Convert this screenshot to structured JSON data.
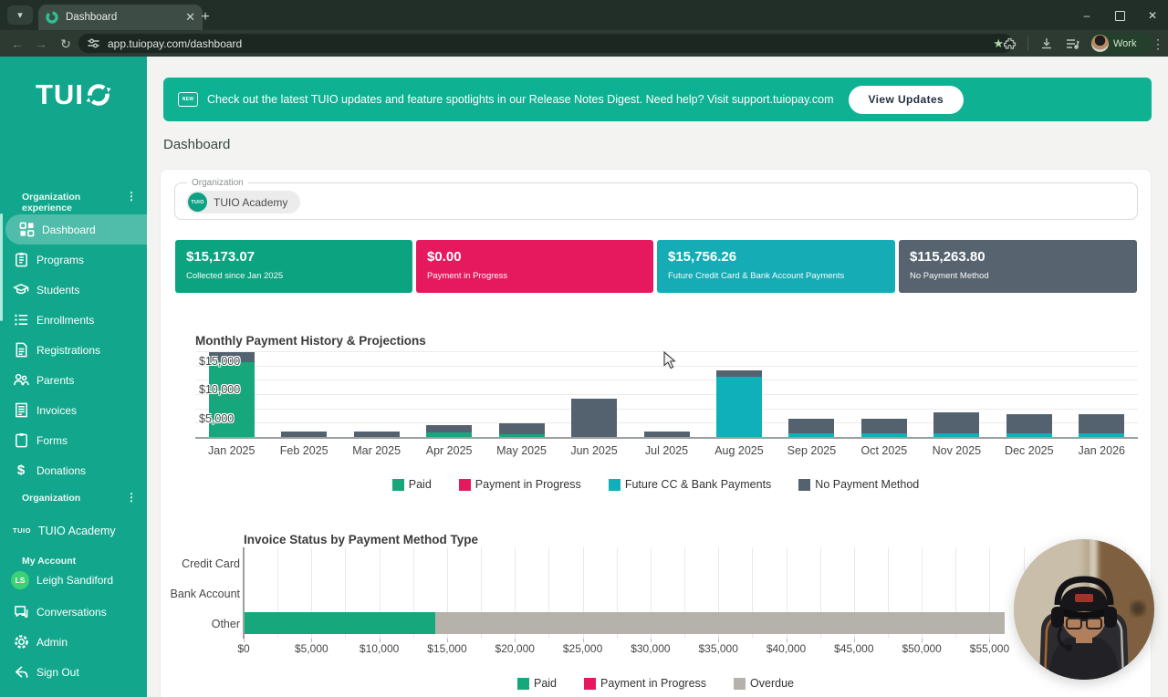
{
  "browser": {
    "tab_title": "Dashboard",
    "url": "app.tuiopay.com/dashboard",
    "profile_label": "Work"
  },
  "sidebar": {
    "logo_text": "TUI",
    "section_experience": "Organization experience",
    "nav": [
      {
        "label": "Dashboard",
        "icon": "dashboard-grid-icon"
      },
      {
        "label": "Programs",
        "icon": "clipboard-icon"
      },
      {
        "label": "Students",
        "icon": "graduation-cap-icon"
      },
      {
        "label": "Enrollments",
        "icon": "list-icon"
      },
      {
        "label": "Registrations",
        "icon": "document-icon"
      },
      {
        "label": "Parents",
        "icon": "people-icon"
      },
      {
        "label": "Invoices",
        "icon": "invoice-icon"
      },
      {
        "label": "Forms",
        "icon": "clipboard-icon"
      },
      {
        "label": "Donations",
        "icon": "dollar-icon"
      }
    ],
    "section_organization": "Organization",
    "org_logo_text": "TUIO",
    "org_name": "TUIO Academy",
    "section_account": "My Account",
    "user_initials": "LS",
    "user_name": "Leigh Sandiford",
    "conversations_label": "Conversations",
    "admin_label": "Admin",
    "signout_label": "Sign Out"
  },
  "banner": {
    "badge": "NEW",
    "message": "Check out the latest TUIO updates and feature spotlights in our Release Notes Digest. Need help? Visit support.tuiopay.com",
    "button_label": "View Updates"
  },
  "page_title": "Dashboard",
  "organization_field": {
    "label": "Organization",
    "logo_text": "TUIO",
    "value": "TUIO Academy"
  },
  "stat_cards": [
    {
      "amount": "$15,173.07",
      "label": "Collected since Jan 2025",
      "color": "#0BA380"
    },
    {
      "amount": "$0.00",
      "label": "Payment in Progress",
      "color": "#E6195E"
    },
    {
      "amount": "$15,756.26",
      "label": "Future Credit Card & Bank Account Payments",
      "color": "#15ACB6"
    },
    {
      "amount": "$115,263.80",
      "label": "No Payment Method",
      "color": "#57646F"
    }
  ],
  "chart_data": [
    {
      "type": "bar",
      "stacked": true,
      "title": "Monthly Payment History & Projections",
      "categories": [
        "Jan 2025",
        "Feb 2025",
        "Mar 2025",
        "Apr 2025",
        "May 2025",
        "Jun 2025",
        "Jul 2025",
        "Aug 2025",
        "Sep 2025",
        "Oct 2025",
        "Nov 2025",
        "Dec 2025",
        "Jan 2026"
      ],
      "series": [
        {
          "name": "Paid",
          "color": "#17A77D",
          "values": [
            13200,
            0,
            0,
            900,
            600,
            0,
            0,
            0,
            0,
            0,
            0,
            0,
            0
          ]
        },
        {
          "name": "Payment in Progress",
          "color": "#E6195E",
          "values": [
            0,
            0,
            0,
            0,
            0,
            0,
            0,
            0,
            0,
            0,
            0,
            0,
            0
          ]
        },
        {
          "name": "Future CC & Bank Payments",
          "color": "#10B0BB",
          "values": [
            0,
            0,
            0,
            0,
            0,
            0,
            0,
            10600,
            800,
            800,
            800,
            800,
            800
          ]
        },
        {
          "name": "No Payment Method",
          "color": "#53626E",
          "values": [
            1800,
            1100,
            1100,
            1400,
            1900,
            6800,
            1100,
            1200,
            2500,
            2500,
            3700,
            3300,
            3300
          ]
        }
      ],
      "y_ticks": [
        {
          "label": "$5,000",
          "value": 5000
        },
        {
          "label": "$10,000",
          "value": 10000
        },
        {
          "label": "$15,000",
          "value": 15000
        }
      ],
      "ylim": [
        0,
        15450
      ],
      "grid": "horizontal",
      "legend_position": "bottom"
    },
    {
      "type": "bar-horizontal",
      "stacked": true,
      "title": "Invoice Status by Payment Method Type",
      "categories": [
        "Credit Card",
        "Bank Account",
        "Other"
      ],
      "series": [
        {
          "name": "Paid",
          "color": "#17A77D",
          "values": [
            0,
            0,
            14100
          ]
        },
        {
          "name": "Payment in Progress",
          "color": "#E6195E",
          "values": [
            0,
            0,
            0
          ]
        },
        {
          "name": "Overdue",
          "color": "#B5B2AC",
          "values": [
            0,
            0,
            42000
          ]
        }
      ],
      "x_ticks": [
        {
          "label": "$0",
          "value": 0
        },
        {
          "label": "$5,000",
          "value": 5000
        },
        {
          "label": "$10,000",
          "value": 10000
        },
        {
          "label": "$15,000",
          "value": 15000
        },
        {
          "label": "$20,000",
          "value": 20000
        },
        {
          "label": "$25,000",
          "value": 25000
        },
        {
          "label": "$30,000",
          "value": 30000
        },
        {
          "label": "$35,000",
          "value": 35000
        },
        {
          "label": "$40,000",
          "value": 40000
        },
        {
          "label": "$45,000",
          "value": 45000
        },
        {
          "label": "$50,000",
          "value": 50000
        },
        {
          "label": "$55,000",
          "value": 55000
        }
      ],
      "xlim": [
        0,
        65800
      ],
      "grid": "vertical",
      "legend_position": "bottom"
    }
  ]
}
